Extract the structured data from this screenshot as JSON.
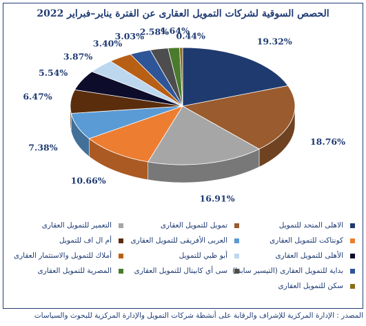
{
  "title": "الحصص السوقية لشركات التمويل العقارى عن الفترة يناير–فبراير 2022",
  "source": "المصدر : الإدارة المركزية للإشراف والرقابة على أنشطة شركات التمويل والإدارة المركزية للبحوث والسياسات",
  "chart_data": {
    "type": "pie",
    "title": "الحصص السوقية لشركات التمويل العقارى عن الفترة يناير–فبراير 2022",
    "unit": "%",
    "legend_position": "bottom",
    "slices": [
      {
        "label": "الاهلى المتحد للتمويل",
        "value": 19.32,
        "display": "19.32%",
        "color": "#1f3a6e"
      },
      {
        "label": "تمويل للتمويل العقارى",
        "value": 18.76,
        "display": "18.76%",
        "color": "#9a5b2e"
      },
      {
        "label": "التعمير للتمويل العقارى",
        "value": 16.91,
        "display": "16.91%",
        "color": "#a6a6a6"
      },
      {
        "label": "كونتاكت للتمويل العقارى",
        "value": 10.66,
        "display": "10.66%",
        "color": "#ed7d31"
      },
      {
        "label": "العربى الأفريقى للتمويل العقارى",
        "value": 7.38,
        "display": "7.38%",
        "color": "#5b9bd5"
      },
      {
        "label": "أم ال اف للتمويل",
        "value": 6.47,
        "display": "6.47%",
        "color": "#5a2d0c"
      },
      {
        "label": "الأهلى للتمويل العقارى",
        "value": 5.54,
        "display": "5.54%",
        "color": "#0d0d2b"
      },
      {
        "label": "أبو ظبي للتمويل",
        "value": 3.87,
        "display": "3.87%",
        "color": "#bdd7ee"
      },
      {
        "label": "أملاك للتمويل والاستثمار العقارى",
        "value": 3.4,
        "display": "3.40%",
        "color": "#b85f16"
      },
      {
        "label": "بداية للتمويل العقارى (التيسير سابقا)",
        "value": 3.03,
        "display": "3.03%",
        "color": "#2e5597"
      },
      {
        "label": "سى أي كابيتال للتمويل العقارى",
        "value": 2.58,
        "display": "2.58%",
        "color": "#4d4d4d"
      },
      {
        "label": "المصرية للتمويل العقارى",
        "value": 1.64,
        "display": "1.64%",
        "color": "#4a7a2c"
      },
      {
        "label": "سكن للتمويل العقارى",
        "value": 0.44,
        "display": "0.44%",
        "color": "#8a6d1a"
      }
    ]
  }
}
